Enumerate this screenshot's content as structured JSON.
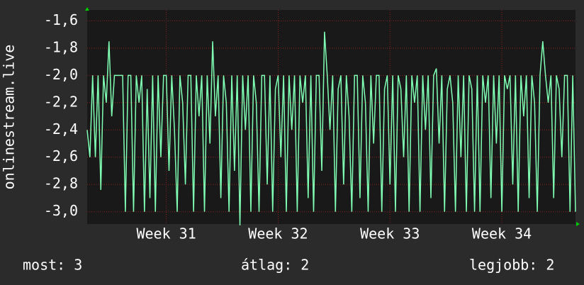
{
  "chart_data": {
    "type": "line",
    "y_label": "onlinestream.live",
    "values": [
      -2.4,
      -2.6,
      -2,
      -2.6,
      -2,
      -2.84,
      -2,
      -2.2,
      -1.75,
      -2.3,
      -2,
      -2,
      -2,
      -2,
      -3,
      -2,
      -2,
      -3,
      -2,
      -2.2,
      -2,
      -3,
      -2.1,
      -2.9,
      -2,
      -3,
      -2,
      -2.6,
      -2,
      -2,
      -2.7,
      -2,
      -2.4,
      -3,
      -2,
      -2.2,
      -2.8,
      -2,
      -2,
      -3,
      -2,
      -2.3,
      -2,
      -3,
      -2,
      -2.5,
      -1.75,
      -2.3,
      -2,
      -2.9,
      -2,
      -2.2,
      -3,
      -2,
      -2.7,
      -2,
      -3.1,
      -2,
      -2.4,
      -2,
      -3,
      -2,
      -2.2,
      -3,
      -2,
      -2,
      -2.8,
      -2,
      -3,
      -2.1,
      -2,
      -2.6,
      -2,
      -3,
      -2,
      -2.4,
      -2,
      -3,
      -2,
      -2.2,
      -2,
      -2.9,
      -2,
      -3,
      -2,
      -2,
      -2.7,
      -1.68,
      -2,
      -2.4,
      -2,
      -3,
      -2.1,
      -2,
      -2.8,
      -2,
      -2.3,
      -3,
      -2,
      -2,
      -2.9,
      -2,
      -2.2,
      -3,
      -2,
      -2.5,
      -2,
      -2,
      -3,
      -2.1,
      -2,
      -2.8,
      -2,
      -3,
      -2,
      -2.1,
      -2.6,
      -2,
      -3,
      -2,
      -2.2,
      -2,
      -3,
      -2,
      -2.4,
      -2,
      -2.9,
      -2,
      -1.95,
      -2.5,
      -2,
      -3,
      -2.1,
      -2,
      -2.2,
      -3,
      -2,
      -2.6,
      -2,
      -3,
      -2,
      -2.1,
      -3,
      -2,
      -3,
      -2,
      -2.2,
      -2,
      -2.9,
      -2,
      -2.5,
      -2,
      -3,
      -2,
      -2.1,
      -2,
      -2.8,
      -2,
      -3,
      -2,
      -2.3,
      -2,
      -2.9,
      -2,
      -2.2,
      -3,
      -2,
      -1.75,
      -2,
      -2.2,
      -2,
      -2.9,
      -2,
      -2.1,
      -2.6,
      -2,
      -2,
      -3,
      -2,
      -3
    ],
    "color": "#80ffb4",
    "xlim": [
      0,
      179
    ],
    "xticks": [
      {
        "value": 29,
        "label": "Week 31"
      },
      {
        "value": 70,
        "label": "Week 32"
      },
      {
        "value": 111,
        "label": "Week 33"
      },
      {
        "value": 152,
        "label": "Week 34"
      }
    ],
    "ylim": [
      -3.09,
      -1.52
    ],
    "yticks": [
      {
        "value": -3.0,
        "label": "-3,0"
      },
      {
        "value": -2.8,
        "label": "-2,8"
      },
      {
        "value": -2.6,
        "label": "-2,6"
      },
      {
        "value": -2.4,
        "label": "-2,4"
      },
      {
        "value": -2.2,
        "label": "-2,2"
      },
      {
        "value": -2.0,
        "label": "-2,0"
      },
      {
        "value": -1.8,
        "label": "-1,8"
      },
      {
        "value": -1.6,
        "label": "-1,6"
      }
    ],
    "grid": true,
    "footer": [
      "most: 3",
      "átlag: 2",
      "legjobb: 2"
    ]
  }
}
